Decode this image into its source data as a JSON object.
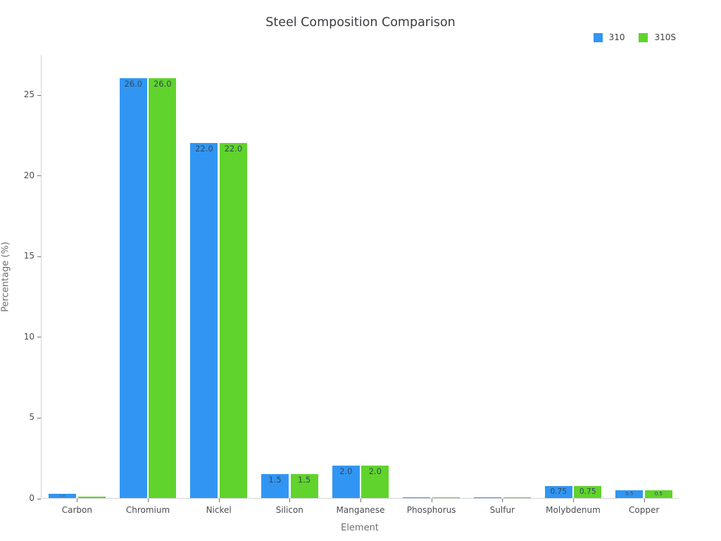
{
  "chart_data": {
    "type": "bar",
    "title": "Steel Composition Comparison",
    "xlabel": "Element",
    "ylabel": "Percentage (%)",
    "categories": [
      "Carbon",
      "Chromium",
      "Nickel",
      "Silicon",
      "Manganese",
      "Phosphorus",
      "Sulfur",
      "Molybdenum",
      "Copper"
    ],
    "series": [
      {
        "name": "310",
        "color": "#3196F3",
        "values": [
          0.25,
          26.0,
          22.0,
          1.5,
          2.0,
          0.045,
          0.03,
          0.75,
          0.5
        ],
        "labels": [
          "0.25",
          "26.0",
          "22.0",
          "1.5",
          "2.0",
          "0.045",
          "0.03",
          "0.75",
          "0.5"
        ]
      },
      {
        "name": "310S",
        "color": "#60D32C",
        "values": [
          0.08,
          26.0,
          22.0,
          1.5,
          2.0,
          0.045,
          0.03,
          0.75,
          0.5
        ],
        "labels": [
          "0.08",
          "26.0",
          "22.0",
          "1.5",
          "2.0",
          "0.045",
          "0.03",
          "0.75",
          "0.5"
        ]
      }
    ],
    "yticks": [
      0,
      5,
      10,
      15,
      20,
      25
    ],
    "ylim": [
      0,
      27.5
    ],
    "grid": false,
    "legend_position": "top-right",
    "background": "#ffffff",
    "bar_label_color": "#33475b"
  }
}
